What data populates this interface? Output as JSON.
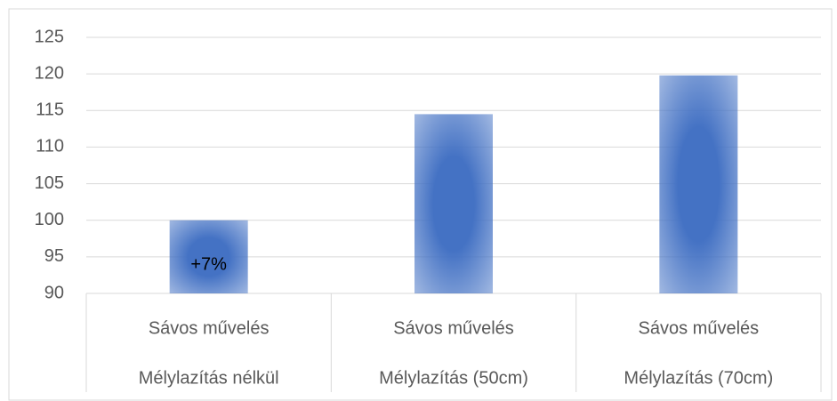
{
  "chart_data": {
    "type": "bar",
    "categories": [
      [
        "Sávos művelés",
        "Mélylazítás nélkül"
      ],
      [
        "Sávos művelés",
        "Mélylazítás (50cm)"
      ],
      [
        "Sávos művelés",
        "Mélylazítás (70cm)"
      ]
    ],
    "values": [
      100,
      114.5,
      119.8
    ],
    "color": "#4472c4",
    "annotation": "+7%",
    "ylim": [
      90,
      125
    ],
    "yticks": [
      90,
      95,
      100,
      105,
      110,
      115,
      120,
      125
    ],
    "grid": true
  }
}
